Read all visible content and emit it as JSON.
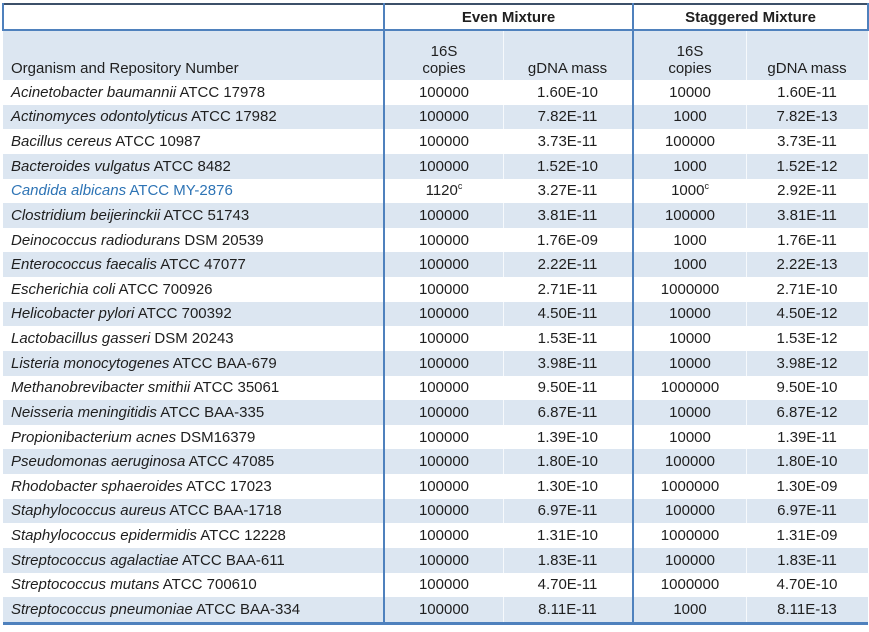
{
  "colors": {
    "stripe_blue": "#dce6f1",
    "border_blue": "#4f81bd",
    "top_border": "#3c5069",
    "highlight_text": "#2e74b5",
    "body_text": "#1f1f1f"
  },
  "header": {
    "even_label": "Even Mixture",
    "staggered_label": "Staggered Mixture",
    "organism_label": "Organism and Repository Number",
    "copies_line1": "16S",
    "copies_line2": "copies",
    "gdna_label": "gDNA mass"
  },
  "table": {
    "rows": [
      {
        "organism_italic": "Acinetobacter baumannii",
        "organism_rest": "ATCC 17978",
        "even_copies": "100000",
        "even_mass": "1.60E-10",
        "stag_copies": "10000",
        "stag_mass": "1.60E-11"
      },
      {
        "organism_italic": "Actinomyces odontolyticus",
        "organism_rest": "ATCC 17982",
        "even_copies": "100000",
        "even_mass": "7.82E-11",
        "stag_copies": "1000",
        "stag_mass": "7.82E-13"
      },
      {
        "organism_italic": "Bacillus cereus",
        "organism_rest": "ATCC 10987",
        "even_copies": "100000",
        "even_mass": "3.73E-11",
        "stag_copies": "100000",
        "stag_mass": "3.73E-11"
      },
      {
        "organism_italic": "Bacteroides vulgatus",
        "organism_rest": "ATCC 8482",
        "even_copies": "100000",
        "even_mass": "1.52E-10",
        "stag_copies": "1000",
        "stag_mass": "1.52E-12"
      },
      {
        "organism_italic": "Candida albicans",
        "organism_rest": "ATCC MY-2876",
        "highlighted": true,
        "even_copies": "1120",
        "even_copies_sup": "c",
        "even_mass": "3.27E-11",
        "stag_copies": "1000",
        "stag_copies_sup": "c",
        "stag_mass": "2.92E-11"
      },
      {
        "organism_italic": "Clostridium beijerinckii",
        "organism_rest": "ATCC 51743",
        "even_copies": "100000",
        "even_mass": "3.81E-11",
        "stag_copies": "100000",
        "stag_mass": "3.81E-11"
      },
      {
        "organism_italic": "Deinococcus radiodurans",
        "organism_rest": "DSM 20539",
        "even_copies": "100000",
        "even_mass": "1.76E-09",
        "stag_copies": "1000",
        "stag_mass": "1.76E-11"
      },
      {
        "organism_italic": "Enterococcus faecalis",
        "organism_rest": "ATCC 47077",
        "even_copies": "100000",
        "even_mass": "2.22E-11",
        "stag_copies": "1000",
        "stag_mass": "2.22E-13"
      },
      {
        "organism_italic": "Escherichia coli",
        "organism_rest": "ATCC 700926",
        "even_copies": "100000",
        "even_mass": "2.71E-11",
        "stag_copies": "1000000",
        "stag_mass": "2.71E-10"
      },
      {
        "organism_italic": "Helicobacter pylori",
        "organism_rest": "ATCC 700392",
        "even_copies": "100000",
        "even_mass": "4.50E-11",
        "stag_copies": "10000",
        "stag_mass": "4.50E-12"
      },
      {
        "organism_italic": "Lactobacillus gasseri",
        "organism_rest": "DSM 20243",
        "even_copies": "100000",
        "even_mass": "1.53E-11",
        "stag_copies": "10000",
        "stag_mass": "1.53E-12"
      },
      {
        "organism_italic": "Listeria monocytogenes",
        "organism_rest": "ATCC BAA-679",
        "even_copies": "100000",
        "even_mass": "3.98E-11",
        "stag_copies": "10000",
        "stag_mass": "3.98E-12"
      },
      {
        "organism_italic": "Methanobrevibacter smithii",
        "organism_rest": "ATCC 35061",
        "even_copies": "100000",
        "even_mass": "9.50E-11",
        "stag_copies": "1000000",
        "stag_mass": "9.50E-10"
      },
      {
        "organism_italic": "Neisseria meningitidis",
        "organism_rest": "ATCC BAA-335",
        "even_copies": "100000",
        "even_mass": "6.87E-11",
        "stag_copies": "10000",
        "stag_mass": "6.87E-12"
      },
      {
        "organism_italic": "Propionibacterium acnes",
        "organism_rest": "DSM16379",
        "even_copies": "100000",
        "even_mass": "1.39E-10",
        "stag_copies": "10000",
        "stag_mass": "1.39E-11"
      },
      {
        "organism_italic": "Pseudomonas aeruginosa",
        "organism_rest": "ATCC 47085",
        "even_copies": "100000",
        "even_mass": "1.80E-10",
        "stag_copies": "100000",
        "stag_mass": "1.80E-10"
      },
      {
        "organism_italic": "Rhodobacter sphaeroides",
        "organism_rest": "ATCC 17023",
        "even_copies": "100000",
        "even_mass": "1.30E-10",
        "stag_copies": "1000000",
        "stag_mass": "1.30E-09"
      },
      {
        "organism_italic": "Staphylococcus aureus",
        "organism_rest": "ATCC BAA-1718",
        "even_copies": "100000",
        "even_mass": "6.97E-11",
        "stag_copies": "100000",
        "stag_mass": "6.97E-11"
      },
      {
        "organism_italic": "Staphylococcus epidermidis",
        "organism_rest": "ATCC 12228",
        "even_copies": "100000",
        "even_mass": "1.31E-10",
        "stag_copies": "1000000",
        "stag_mass": "1.31E-09"
      },
      {
        "organism_italic": "Streptococcus agalactiae",
        "organism_rest": "ATCC BAA-611",
        "even_copies": "100000",
        "even_mass": "1.83E-11",
        "stag_copies": "100000",
        "stag_mass": "1.83E-11"
      },
      {
        "organism_italic": "Streptococcus mutans",
        "organism_rest": "ATCC 700610",
        "even_copies": "100000",
        "even_mass": "4.70E-11",
        "stag_copies": "1000000",
        "stag_mass": "4.70E-10"
      },
      {
        "organism_italic": "Streptococcus pneumoniae",
        "organism_rest": "ATCC BAA-334",
        "even_copies": "100000",
        "even_mass": "8.11E-11",
        "stag_copies": "1000",
        "stag_mass": "8.11E-13"
      }
    ]
  }
}
